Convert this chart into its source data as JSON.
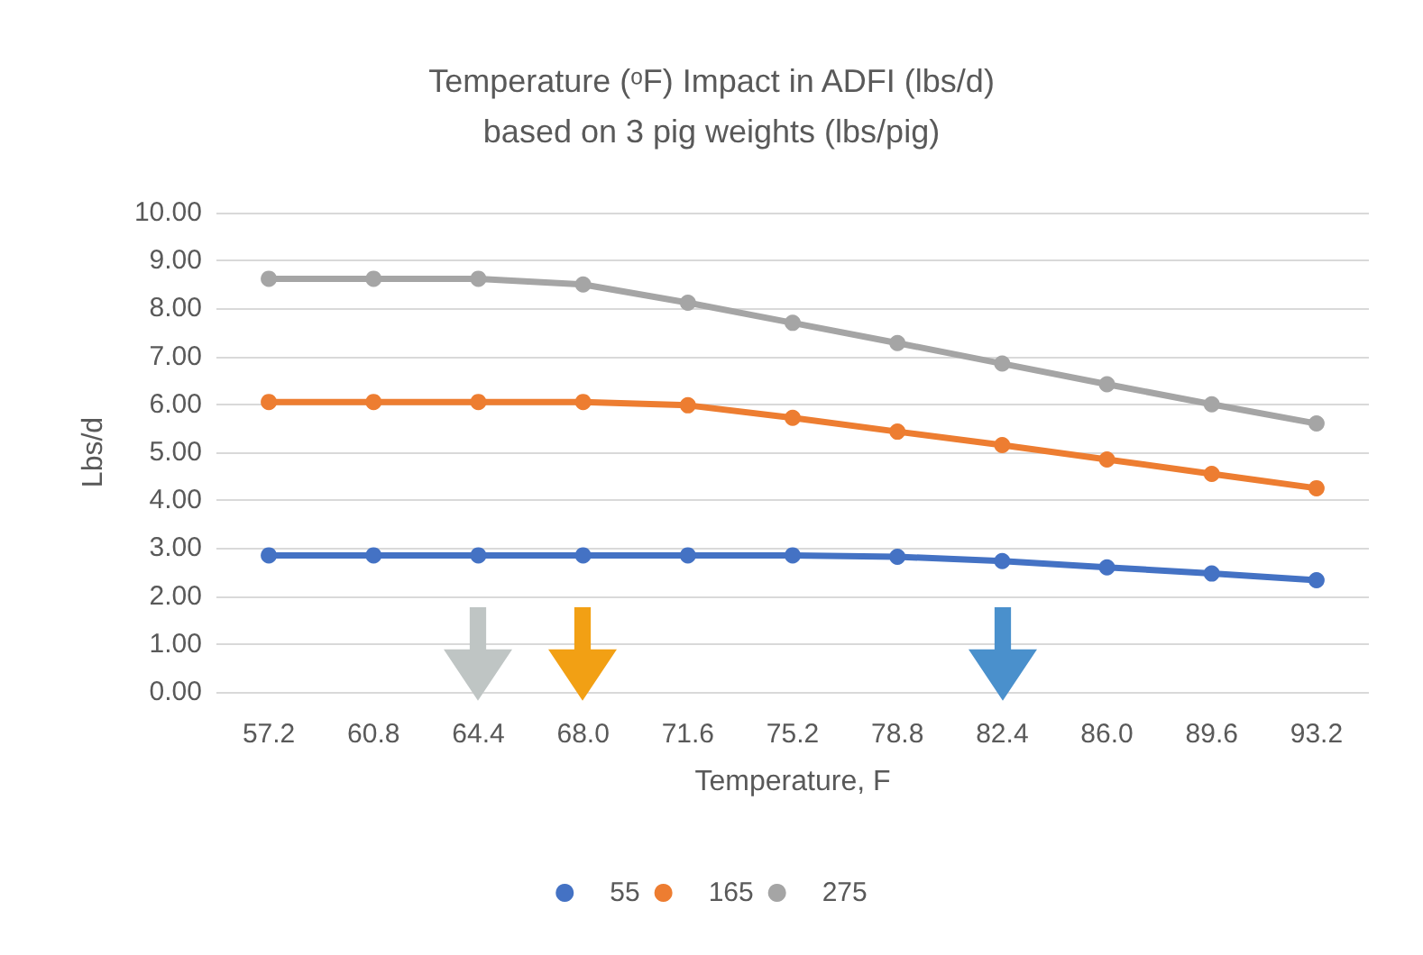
{
  "chart_data": {
    "type": "line",
    "title": "Temperature (ᵒF) Impact in ADFI (lbs/d)\nbased on 3 pig weights (lbs/pig)",
    "xlabel": "Temperature, F",
    "ylabel": "Lbs/d",
    "categories": [
      "57.2",
      "60.8",
      "64.4",
      "68.0",
      "71.6",
      "75.2",
      "78.8",
      "82.4",
      "86.0",
      "89.6",
      "93.2"
    ],
    "series": [
      {
        "name": "55",
        "color": "#4472c4",
        "values": [
          2.85,
          2.85,
          2.85,
          2.85,
          2.85,
          2.85,
          2.82,
          2.73,
          2.6,
          2.47,
          2.33
        ]
      },
      {
        "name": "165",
        "color": "#ed7d31",
        "values": [
          6.05,
          6.05,
          6.05,
          6.05,
          5.98,
          5.72,
          5.43,
          5.15,
          4.85,
          4.55,
          4.25
        ]
      },
      {
        "name": "275",
        "color": "#a5a5a5",
        "values": [
          8.62,
          8.62,
          8.62,
          8.5,
          8.12,
          7.7,
          7.28,
          6.85,
          6.42,
          6.0,
          5.6
        ]
      }
    ],
    "ylim": [
      0,
      10
    ],
    "yticks": [
      {
        "value": 0,
        "label": "0.00"
      },
      {
        "value": 1,
        "label": "1.00"
      },
      {
        "value": 2,
        "label": "2.00"
      },
      {
        "value": 3,
        "label": "3.00"
      },
      {
        "value": 4,
        "label": "4.00"
      },
      {
        "value": 5,
        "label": "5.00"
      },
      {
        "value": 6,
        "label": "6.00"
      },
      {
        "value": 7,
        "label": "7.00"
      },
      {
        "value": 8,
        "label": "8.00"
      },
      {
        "value": 9,
        "label": "9.00"
      },
      {
        "value": 10,
        "label": "10.00"
      }
    ],
    "grid": "y",
    "legend": "bottom",
    "marker": "circle",
    "line_style": "solid"
  }
}
